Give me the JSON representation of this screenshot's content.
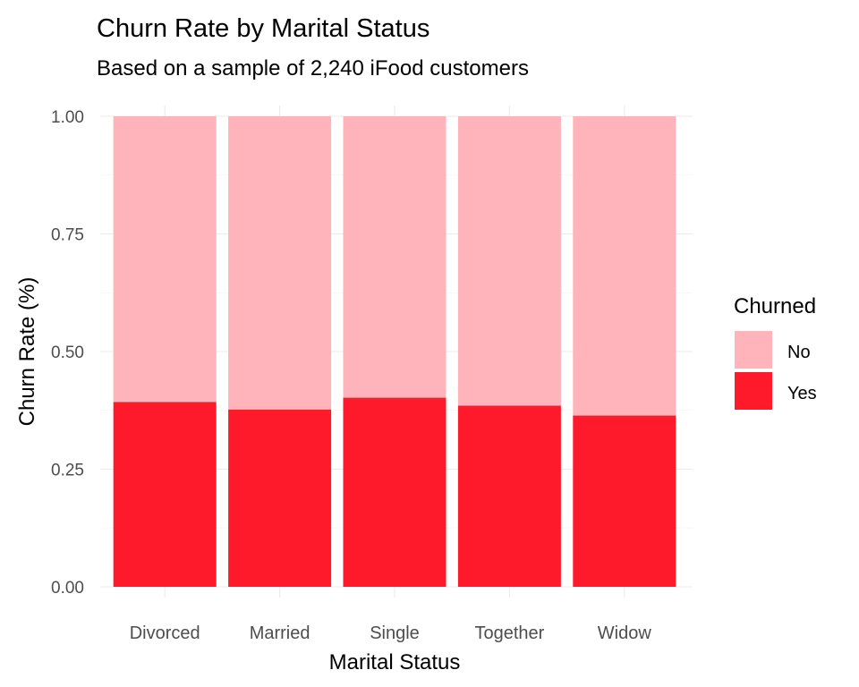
{
  "chart_data": {
    "type": "bar",
    "stacked": true,
    "title": "Churn Rate by Marital Status",
    "subtitle": "Based on a sample of 2,240 iFood customers",
    "xlabel": "Marital Status",
    "ylabel": "Churn Rate (%)",
    "categories": [
      "Divorced",
      "Married",
      "Single",
      "Together",
      "Widow"
    ],
    "ylim": [
      0,
      1
    ],
    "y_ticks": [
      "0.00",
      "0.25",
      "0.50",
      "0.75",
      "1.00"
    ],
    "y_tick_values": [
      0,
      0.25,
      0.5,
      0.75,
      1.0
    ],
    "grid": true,
    "legend": {
      "title": "Churned",
      "position": "right",
      "entries": [
        "No",
        "Yes"
      ]
    },
    "series": [
      {
        "name": "Yes",
        "color": "#ff1a2b",
        "values": [
          0.393,
          0.377,
          0.402,
          0.385,
          0.364
        ]
      },
      {
        "name": "No",
        "color": "#ffb3ba",
        "values": [
          0.607,
          0.623,
          0.598,
          0.615,
          0.636
        ]
      }
    ]
  }
}
